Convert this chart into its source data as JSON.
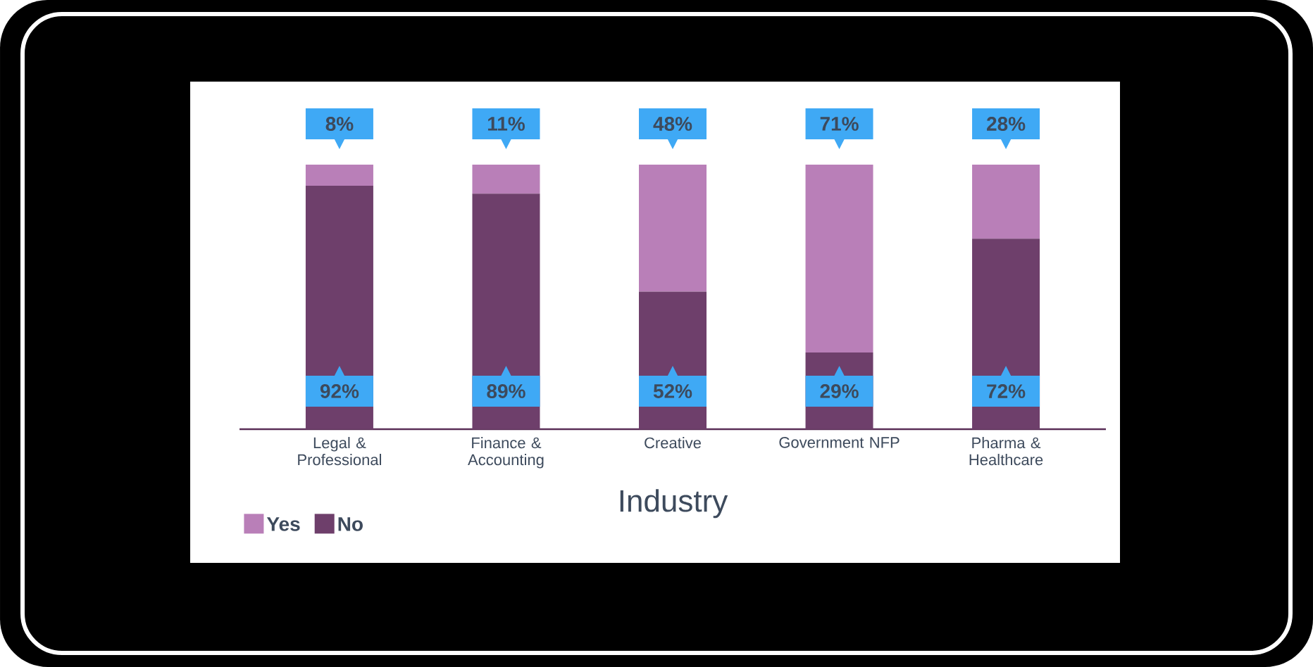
{
  "chart_data": {
    "type": "bar",
    "stacked": true,
    "xlabel": "Industry",
    "categories": [
      "Legal & Professional",
      "Finance & Accounting",
      "Creative",
      "Government NFP",
      "Pharma & Healthcare"
    ],
    "series": [
      {
        "name": "No",
        "color": "#6e3f6b",
        "values": [
          92,
          89,
          52,
          29,
          72
        ],
        "value_labels": [
          "92%",
          "89%",
          "52%",
          "29%",
          "72%"
        ]
      },
      {
        "name": "Yes",
        "color": "#b97fb8",
        "values": [
          8,
          11,
          48,
          71,
          28
        ],
        "value_labels": [
          "8%",
          "11%",
          "48%",
          "71%",
          "28%"
        ]
      }
    ],
    "ylim": [
      0,
      100
    ],
    "legend": "bottom left"
  }
}
